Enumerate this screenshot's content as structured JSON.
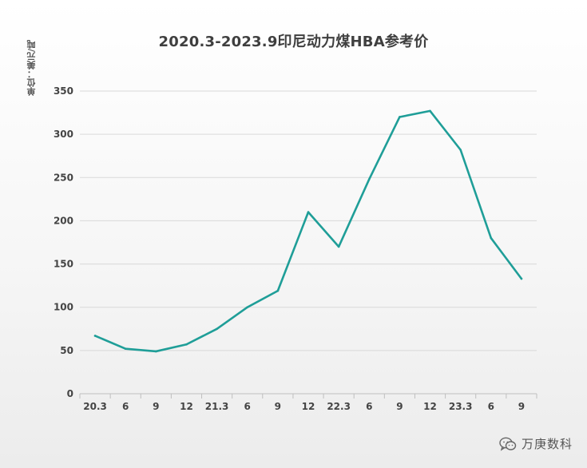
{
  "chart_data": {
    "type": "line",
    "title": "2020.3-2023.9印尼动力煤HBA参考价",
    "ylabel": "单位：美元/吨",
    "xlabel": "",
    "categories": [
      "20.3",
      "6",
      "9",
      "12",
      "21.3",
      "6",
      "9",
      "12",
      "22.3",
      "6",
      "9",
      "12",
      "23.3",
      "6",
      "9"
    ],
    "series": [
      {
        "values": [
          67,
          52,
          49,
          57,
          75,
          100,
          119,
          210,
          170,
          248,
          320,
          327,
          282,
          180,
          133
        ]
      }
    ],
    "ylim": [
      0,
      350
    ],
    "yticks": [
      0,
      50,
      100,
      150,
      200,
      250,
      300,
      350
    ],
    "grid": true,
    "line_color": "#1f9e98"
  },
  "watermark": {
    "text": "万庚数科",
    "icon": "wechat-icon"
  }
}
